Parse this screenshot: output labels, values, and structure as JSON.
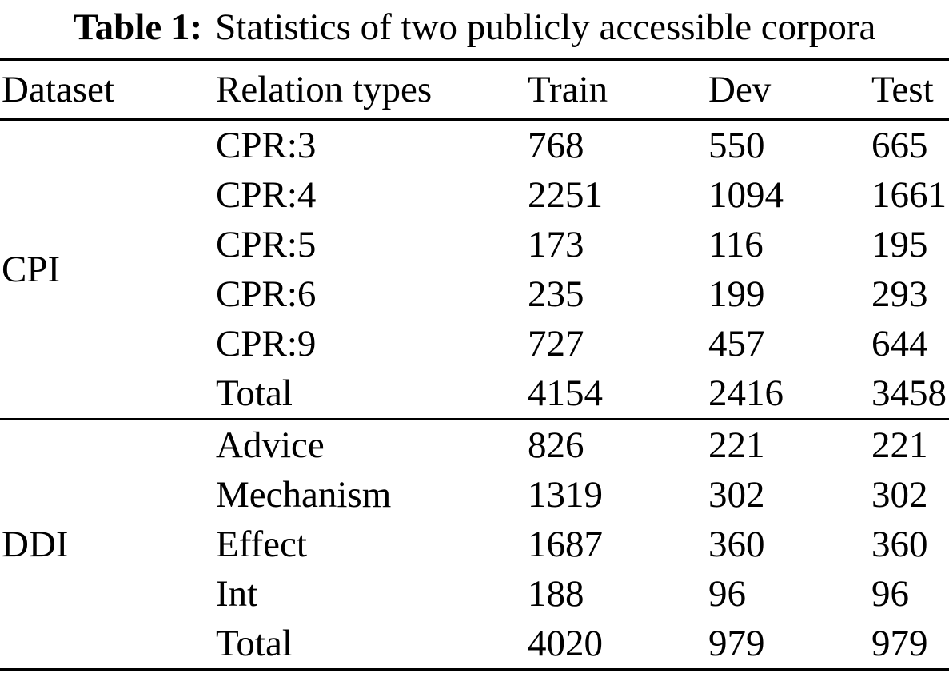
{
  "caption": {
    "label": "Table 1:",
    "text": "Statistics of two publicly accessible corpora"
  },
  "table": {
    "columns": [
      "Dataset",
      "Relation types",
      "Train",
      "Dev",
      "Test"
    ],
    "groups": [
      {
        "dataset": "CPI",
        "rows": [
          [
            "CPR:3",
            "768",
            "550",
            "665"
          ],
          [
            "CPR:4",
            "2251",
            "1094",
            "1661"
          ],
          [
            "CPR:5",
            "173",
            "116",
            "195"
          ],
          [
            "CPR:6",
            "235",
            "199",
            "293"
          ],
          [
            "CPR:9",
            "727",
            "457",
            "644"
          ],
          [
            "Total",
            "4154",
            "2416",
            "3458"
          ]
        ]
      },
      {
        "dataset": "DDI",
        "rows": [
          [
            "Advice",
            "826",
            "221",
            "221"
          ],
          [
            "Mechanism",
            "1319",
            "302",
            "302"
          ],
          [
            "Effect",
            "1687",
            "360",
            "360"
          ],
          [
            "Int",
            "188",
            "96",
            "96"
          ],
          [
            "Total",
            "4020",
            "979",
            "979"
          ]
        ]
      }
    ]
  },
  "chart_data": {
    "type": "table",
    "title": "Table 1: Statistics of two publicly accessible corpora",
    "columns": [
      "Dataset",
      "Relation types",
      "Train",
      "Dev",
      "Test"
    ],
    "rows": [
      [
        "CPI",
        "CPR:3",
        768,
        550,
        665
      ],
      [
        "CPI",
        "CPR:4",
        2251,
        1094,
        1661
      ],
      [
        "CPI",
        "CPR:5",
        173,
        116,
        195
      ],
      [
        "CPI",
        "CPR:6",
        235,
        199,
        293
      ],
      [
        "CPI",
        "CPR:9",
        727,
        457,
        644
      ],
      [
        "CPI",
        "Total",
        4154,
        2416,
        3458
      ],
      [
        "DDI",
        "Advice",
        826,
        221,
        221
      ],
      [
        "DDI",
        "Mechanism",
        1319,
        302,
        302
      ],
      [
        "DDI",
        "Effect",
        1687,
        360,
        360
      ],
      [
        "DDI",
        "Int",
        188,
        96,
        96
      ],
      [
        "DDI",
        "Total",
        4020,
        979,
        979
      ]
    ]
  }
}
